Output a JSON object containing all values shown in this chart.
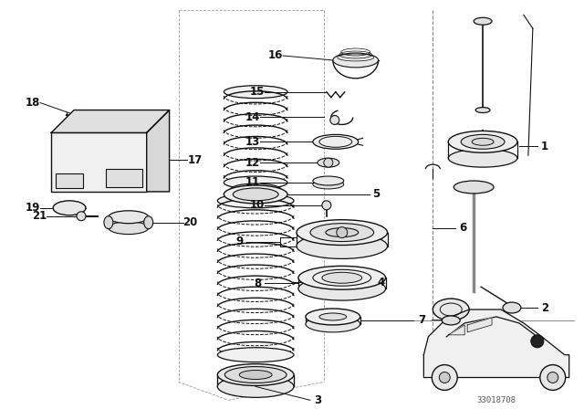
{
  "bg_color": "#ffffff",
  "line_color": "#111111",
  "fig_width": 6.4,
  "fig_height": 4.48,
  "dpi": 100,
  "diagram_id": "33018708",
  "label_fontsize": 8.5,
  "label_bold": true
}
